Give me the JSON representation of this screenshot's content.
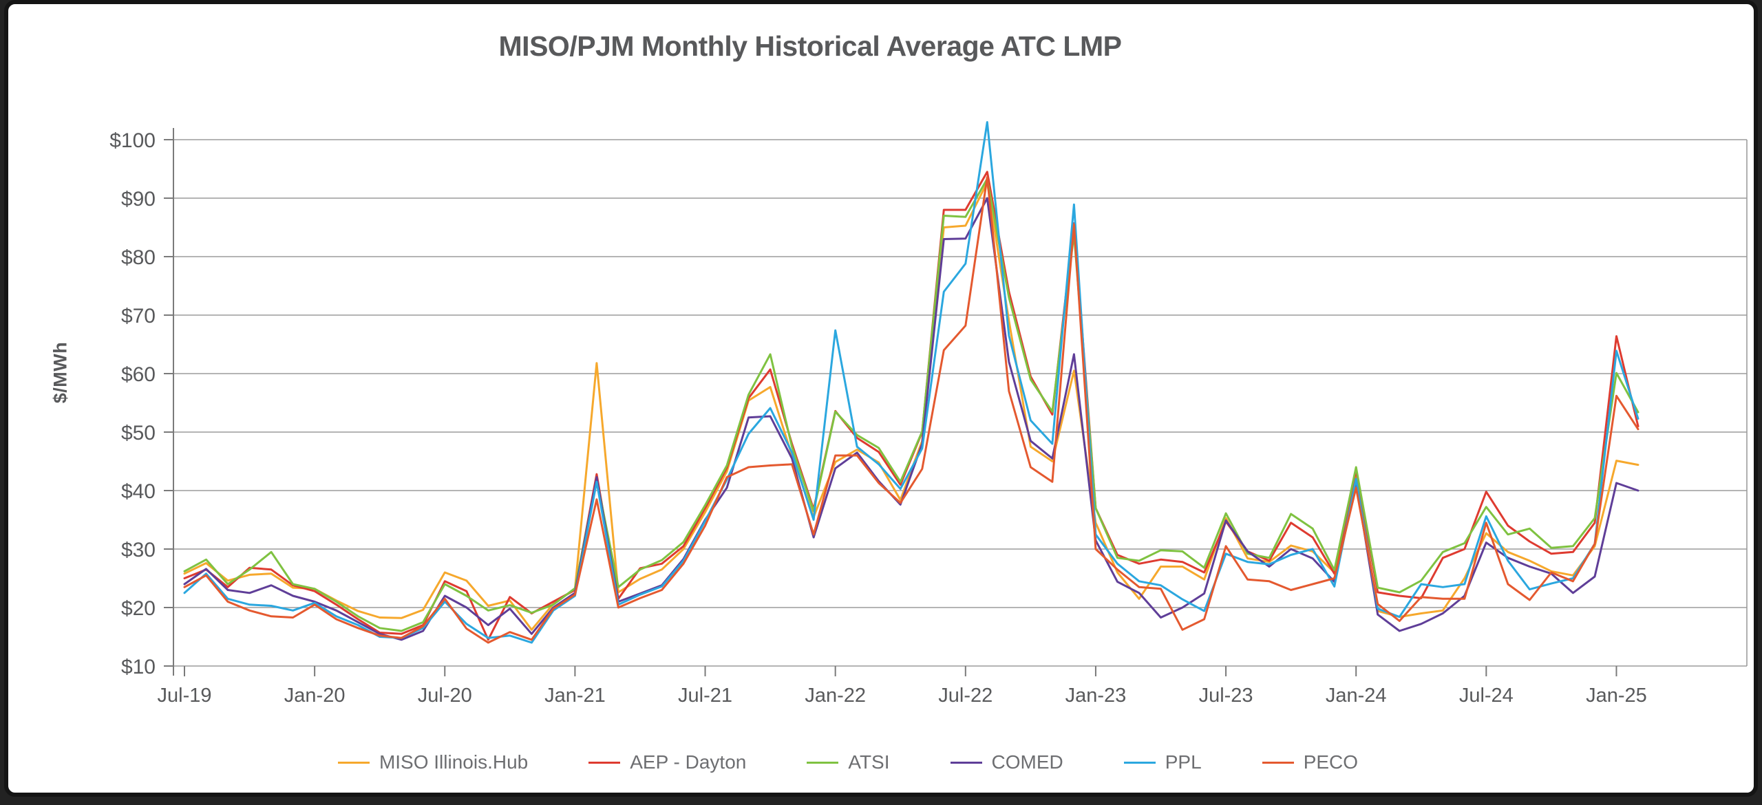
{
  "chart_data": {
    "type": "line",
    "title": "MISO/PJM Monthly Historical Average ATC LMP",
    "ylabel": "$/MWh",
    "ylim": [
      10,
      104
    ],
    "grid": true,
    "legend_position": "bottom",
    "y_ticks": [
      {
        "label": "$10",
        "value": 10
      },
      {
        "label": "$20",
        "value": 20
      },
      {
        "label": "$30",
        "value": 30
      },
      {
        "label": "$40",
        "value": 40
      },
      {
        "label": "$50",
        "value": 50
      },
      {
        "label": "$60",
        "value": 60
      },
      {
        "label": "$70",
        "value": 70
      },
      {
        "label": "$80",
        "value": 80
      },
      {
        "label": "$90",
        "value": 90
      },
      {
        "label": "$100",
        "value": 100
      }
    ],
    "x_tick_labels": [
      "Jul-19",
      "Jan-20",
      "Jul-20",
      "Jan-21",
      "Jul-21",
      "Jan-22",
      "Jul-22",
      "Jan-23",
      "Jul-23",
      "Jan-24",
      "Jul-24",
      "Jan-25"
    ],
    "x": [
      "Jul-19",
      "Aug-19",
      "Sep-19",
      "Oct-19",
      "Nov-19",
      "Dec-19",
      "Jan-20",
      "Feb-20",
      "Mar-20",
      "Apr-20",
      "May-20",
      "Jun-20",
      "Jul-20",
      "Aug-20",
      "Sep-20",
      "Oct-20",
      "Nov-20",
      "Dec-20",
      "Jan-21",
      "Feb-21",
      "Mar-21",
      "Apr-21",
      "May-21",
      "Jun-21",
      "Jul-21",
      "Aug-21",
      "Sep-21",
      "Oct-21",
      "Nov-21",
      "Dec-21",
      "Jan-22",
      "Feb-22",
      "Mar-22",
      "Apr-22",
      "May-22",
      "Jun-22",
      "Jul-22",
      "Aug-22",
      "Sep-22",
      "Oct-22",
      "Nov-22",
      "Dec-22",
      "Jan-23",
      "Feb-23",
      "Mar-23",
      "Apr-23",
      "May-23",
      "Jun-23",
      "Jul-23",
      "Aug-23",
      "Sep-23",
      "Oct-23",
      "Nov-23",
      "Dec-23",
      "Jan-24",
      "Feb-24",
      "Mar-24",
      "Apr-24",
      "May-24",
      "Jun-24",
      "Jul-24",
      "Aug-24",
      "Sep-24",
      "Oct-24",
      "Nov-24",
      "Dec-24",
      "Jan-25",
      "Feb-25"
    ],
    "series": [
      {
        "name": "MISO Illinois.Hub",
        "color": "#F6A82C",
        "values": [
          25.8,
          27.6,
          24.6,
          25.6,
          25.8,
          23.4,
          23.2,
          21.2,
          19.4,
          18.3,
          18.2,
          19.6,
          26.0,
          24.6,
          20.3,
          21.2,
          16.2,
          20.6,
          23.2,
          61.8,
          22.6,
          24.9,
          26.5,
          30.0,
          36.3,
          43.3,
          55.4,
          57.7,
          46.0,
          35.5,
          44.9,
          47.0,
          44.8,
          38.4,
          48.5,
          85.0,
          85.3,
          92.7,
          69.0,
          47.5,
          45.0,
          60.5,
          34.5,
          26.0,
          21.5,
          27.0,
          27.0,
          24.8,
          35.3,
          28.4,
          27.8,
          30.6,
          29.6,
          26.0,
          43.0,
          19.4,
          18.4,
          19.0,
          19.5,
          25.0,
          32.7,
          29.5,
          28.0,
          26.2,
          25.5,
          30.5,
          45.1,
          44.4
        ]
      },
      {
        "name": "AEP - Dayton",
        "color": "#DE3B30",
        "values": [
          25.0,
          26.5,
          23.5,
          26.8,
          26.5,
          23.8,
          22.8,
          20.5,
          18.0,
          15.7,
          15.5,
          17.0,
          24.5,
          22.8,
          14.5,
          21.8,
          19.0,
          21.0,
          23.0,
          42.8,
          21.5,
          26.7,
          27.5,
          30.5,
          37.0,
          43.9,
          55.8,
          60.7,
          48.0,
          36.8,
          53.6,
          49.0,
          46.6,
          41.0,
          50.0,
          88.0,
          88.0,
          94.5,
          74.0,
          59.5,
          53.0,
          85.7,
          37.0,
          29.0,
          27.5,
          28.2,
          27.8,
          26.0,
          34.7,
          29.6,
          28.0,
          34.5,
          32.0,
          25.8,
          43.5,
          22.6,
          22.0,
          21.6,
          28.5,
          30.0,
          39.8,
          34.0,
          31.3,
          29.2,
          29.5,
          34.5,
          66.4,
          51.0
        ]
      },
      {
        "name": "ATSI",
        "color": "#7FC241",
        "values": [
          26.2,
          28.2,
          24.0,
          26.5,
          29.5,
          24.0,
          23.2,
          21.0,
          18.5,
          16.5,
          16.0,
          17.5,
          24.0,
          22.0,
          19.5,
          20.4,
          19.1,
          20.5,
          23.3,
          42.0,
          23.5,
          26.5,
          28.1,
          31.2,
          37.5,
          44.3,
          56.4,
          63.3,
          47.5,
          36.5,
          53.5,
          49.5,
          47.3,
          41.5,
          50.1,
          87.0,
          86.8,
          93.3,
          73.0,
          59.0,
          53.5,
          83.9,
          37.0,
          28.5,
          28.0,
          29.8,
          29.6,
          26.8,
          36.1,
          29.2,
          28.5,
          36.0,
          33.5,
          26.4,
          44.0,
          23.4,
          22.6,
          24.6,
          29.5,
          31.0,
          37.2,
          32.5,
          33.5,
          30.2,
          30.5,
          35.3,
          60.1,
          53.4
        ]
      },
      {
        "name": "COMED",
        "color": "#5F3E98",
        "values": [
          24.0,
          26.6,
          23.0,
          22.5,
          23.8,
          22.0,
          21.0,
          19.5,
          17.5,
          15.5,
          14.5,
          16.0,
          22.0,
          20.0,
          17.0,
          19.8,
          15.5,
          20.0,
          22.5,
          42.3,
          21.0,
          22.4,
          23.8,
          28.3,
          35.0,
          40.5,
          52.5,
          52.7,
          45.5,
          32.0,
          43.8,
          46.5,
          41.6,
          37.6,
          48.0,
          83.0,
          83.1,
          90.0,
          62.0,
          48.5,
          45.5,
          63.3,
          31.5,
          24.4,
          22.5,
          18.3,
          20.0,
          22.4,
          34.9,
          29.6,
          27.0,
          30.0,
          28.4,
          24.4,
          41.5,
          18.8,
          16.0,
          17.2,
          19.0,
          22.0,
          31.1,
          28.5,
          27.0,
          25.8,
          22.5,
          25.3,
          41.3,
          40.0
        ]
      },
      {
        "name": "PPL",
        "color": "#2BA7DF",
        "values": [
          22.5,
          25.8,
          21.5,
          20.5,
          20.3,
          19.5,
          20.8,
          18.5,
          17.0,
          15.0,
          14.8,
          16.5,
          21.0,
          17.2,
          14.8,
          15.2,
          14.0,
          19.5,
          22.0,
          41.5,
          20.5,
          22.2,
          23.6,
          28.0,
          34.8,
          41.9,
          49.7,
          54.1,
          46.5,
          35.0,
          67.4,
          47.5,
          44.5,
          40.3,
          47.2,
          74.0,
          78.8,
          103.0,
          66.5,
          52.0,
          48.0,
          88.9,
          32.5,
          27.5,
          24.5,
          23.8,
          21.4,
          19.4,
          29.2,
          27.8,
          27.4,
          29.0,
          30.0,
          23.6,
          42.0,
          19.8,
          18.4,
          24.0,
          23.5,
          24.0,
          35.6,
          28.0,
          23.1,
          24.1,
          25.0,
          30.9,
          63.9,
          52.3
        ]
      },
      {
        "name": "PECO",
        "color": "#E4592F",
        "values": [
          23.5,
          25.5,
          21.0,
          19.5,
          18.5,
          18.3,
          20.5,
          18.0,
          16.5,
          15.2,
          14.8,
          16.8,
          21.5,
          16.4,
          14.0,
          15.8,
          14.5,
          19.8,
          22.2,
          38.5,
          20.0,
          21.6,
          23.0,
          27.5,
          34.0,
          42.3,
          44.0,
          44.3,
          44.5,
          32.5,
          46.0,
          46.0,
          41.3,
          37.9,
          43.7,
          64.0,
          68.2,
          93.6,
          57.0,
          44.0,
          41.5,
          85.5,
          30.0,
          26.5,
          23.5,
          23.2,
          16.2,
          18.0,
          30.5,
          24.8,
          24.5,
          23.0,
          24.0,
          25.0,
          40.5,
          20.6,
          17.7,
          21.8,
          21.5,
          21.5,
          34.5,
          24.0,
          21.3,
          26.0,
          24.5,
          30.9,
          56.2,
          50.5
        ]
      }
    ]
  },
  "style": {
    "grid_color": "#9c9c9c",
    "axis_color": "#7a7a7a",
    "tick_text_color": "#58595b"
  }
}
